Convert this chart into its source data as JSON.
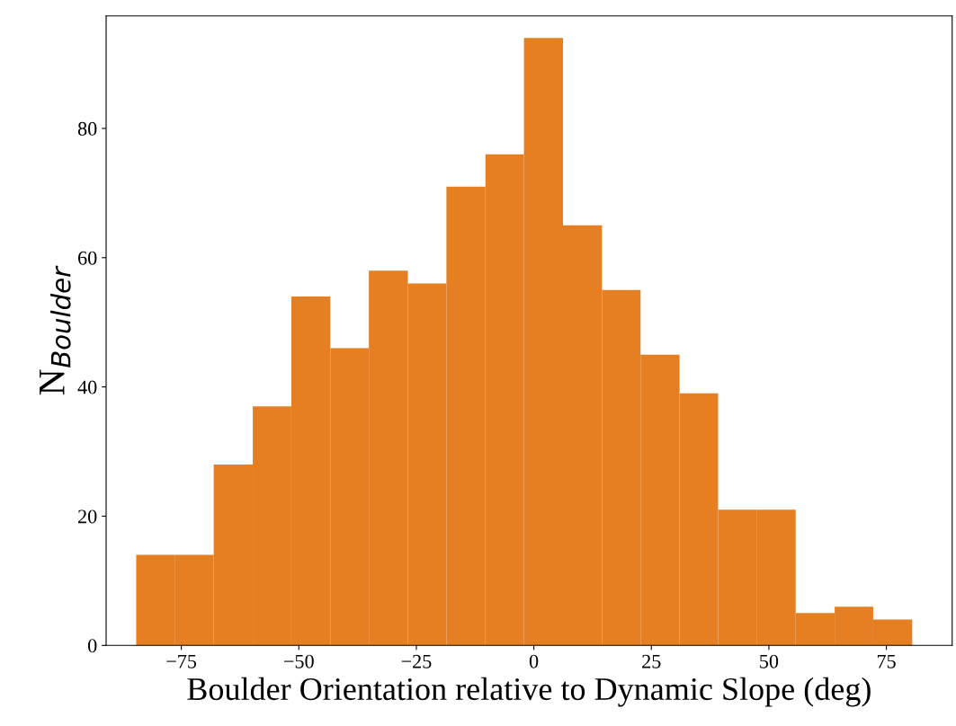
{
  "chart_data": {
    "type": "histogram",
    "xlabel": "Boulder Orientation relative to Dynamic Slope (deg)",
    "ylabel": "N$_{Boulder}$",
    "color": "#e67f22",
    "bins": [
      -84.6,
      -76.3,
      -68.1,
      -59.8,
      -51.6,
      -43.3,
      -35.1,
      -26.8,
      -18.6,
      -10.3,
      -2.1,
      6.2,
      14.5,
      22.7,
      31.0,
      39.2,
      47.5,
      55.7,
      64.0,
      72.2,
      80.5
    ],
    "values": [
      14,
      14,
      28,
      37,
      54,
      46,
      58,
      56,
      71,
      76,
      94,
      65,
      55,
      45,
      39,
      21,
      21,
      5,
      6,
      4
    ],
    "xlim": [
      -91,
      89
    ],
    "xticks": [
      {
        "value": -75,
        "label": "−75"
      },
      {
        "value": -50,
        "label": "−50"
      },
      {
        "value": -25,
        "label": "−25"
      },
      0,
      25,
      50,
      75
    ],
    "ylim": [
      0,
      97.4
    ],
    "yticks": [
      0,
      20,
      40,
      60,
      80
    ],
    "grid": false
  }
}
